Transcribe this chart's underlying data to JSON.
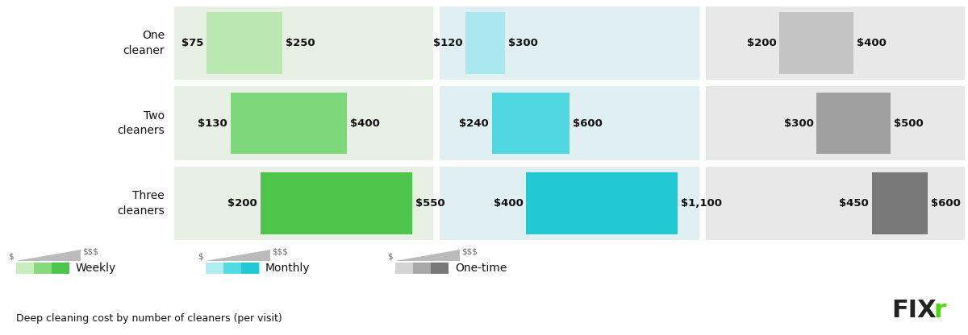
{
  "subtitle": "Deep cleaning cost by number of cleaners (per visit)",
  "rows": [
    "One\ncleaner",
    "Two\ncleaners",
    "Three\ncleaners"
  ],
  "weekly": {
    "min": [
      75,
      130,
      200
    ],
    "max": [
      250,
      400,
      550
    ],
    "bar_colors": [
      "#bbe8b0",
      "#7dd87a",
      "#4dc44a"
    ],
    "bg": "#e8f0e6"
  },
  "monthly": {
    "min": [
      120,
      240,
      400
    ],
    "max": [
      300,
      600,
      1100
    ],
    "bar_colors": [
      "#a8e8ee",
      "#50d8e0",
      "#22c8d4"
    ],
    "bg": "#e0f0f2"
  },
  "onetime": {
    "min": [
      200,
      300,
      450
    ],
    "max": [
      400,
      500,
      600
    ],
    "bar_colors": [
      "#c4c4c4",
      "#a0a0a0",
      "#787878"
    ],
    "bg": "#e8e8e8"
  },
  "panel_scale_max": [
    600,
    1200,
    700
  ],
  "fig_bg": "#ffffff",
  "text_color": "#111111",
  "legend_weekly_colors": [
    "#c8eebb",
    "#88d880",
    "#4dc44a"
  ],
  "legend_monthly_colors": [
    "#b0ecf4",
    "#50dce4",
    "#22c8d4"
  ],
  "legend_onetime_colors": [
    "#d4d4d4",
    "#a8a8a8",
    "#787878"
  ]
}
